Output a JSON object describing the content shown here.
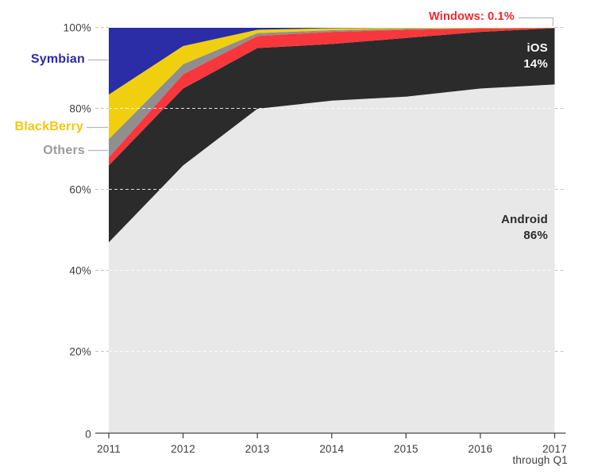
{
  "chart_data": {
    "type": "area",
    "stacked": true,
    "title": "",
    "xlabel": "",
    "ylabel": "",
    "x": [
      2011,
      2012,
      2013,
      2014,
      2015,
      2016,
      2017
    ],
    "x_note": "through Q1",
    "ylim": [
      0,
      100
    ],
    "ytick_values": [
      100,
      80,
      60,
      40,
      20,
      0
    ],
    "ytick_labels": [
      "100%",
      "80%",
      "60%",
      "40%",
      "20%",
      "0"
    ],
    "grid": "horizontal dashed",
    "legend_position": "labels beside and inside areas",
    "series": [
      {
        "name": "Android",
        "color": "#e8e8e8",
        "label_color": "#2b2b2b",
        "values": [
          47,
          66,
          80,
          82,
          83,
          85,
          86
        ]
      },
      {
        "name": "iOS",
        "color": "#2b2b2b",
        "label_color": "#fafafa",
        "values": [
          19,
          19,
          15,
          14,
          14.5,
          14,
          13.9
        ]
      },
      {
        "name": "Windows",
        "color": "#f8373c",
        "label_color": "#f2262e",
        "values": [
          2,
          3.5,
          3,
          3,
          2,
          0.8,
          0.1
        ]
      },
      {
        "name": "Others",
        "color": "#8f8f8f",
        "label_color": "#9b9b9b",
        "values": [
          4.5,
          2.5,
          0.7,
          0.4,
          0.3,
          0.1,
          0
        ]
      },
      {
        "name": "BlackBerry",
        "color": "#f0d00e",
        "label_color": "#f5c60e",
        "values": [
          11,
          4.5,
          0.8,
          0.5,
          0.2,
          0.1,
          0
        ]
      },
      {
        "name": "Symbian",
        "color": "#2a2da5",
        "label_color": "#2a2ba8",
        "values": [
          16.5,
          4.5,
          0.5,
          0.1,
          0,
          0,
          0
        ]
      }
    ],
    "annotations": {
      "windows": "Windows: 0.1%",
      "ios_name": "iOS",
      "ios_value": "14%",
      "android_name": "Android",
      "android_value": "86%"
    }
  }
}
